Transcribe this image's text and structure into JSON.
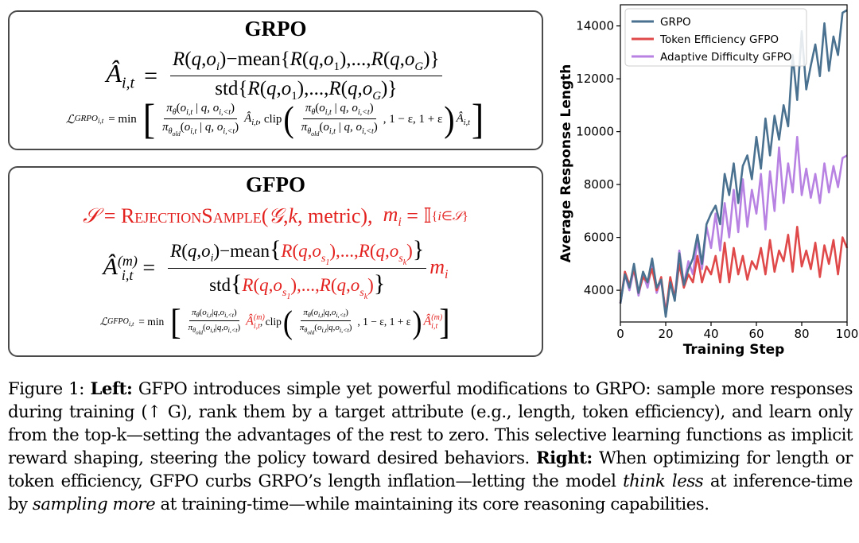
{
  "grpo_box": {
    "title": "GRPO",
    "adv_lhs": "Â",
    "adv_sub": "i,t",
    "adv_num": "R(q,o",
    "adv_num_full": "R(q,oᵢ)−mean{R(q,o₁),...,R(q,o_G)}",
    "adv_den_full": "std{R(q,o₁),...,R(q,o_G)}",
    "loss_lhs": "ℒ_GRPO_i,t",
    "loss_rhs": "min[ πθ(oᵢ,ₜ | q, oᵢ,<ₜ) / πθold(oᵢ,ₜ | q, oᵢ,<ₜ) Âᵢ,ₜ, clip( πθ(oᵢ,ₜ | q, oᵢ,<ₜ) / πθold(oᵢ,ₜ | q, oᵢ,<ₜ), 1 − ε, 1 + ε ) Âᵢ,ₜ ]"
  },
  "gfpo_box": {
    "title": "GFPO",
    "selection_full": "𝒮 = RejectionSample(𝒢, k, metric), mᵢ = 𝕀{i∈𝒮}",
    "adv_num_full": "R(q,oᵢ)−mean{R(q,o_s₁),...,R(q,o_sₖ)}",
    "adv_den_full": "std{R(q,o_s₁),...,R(q,o_sₖ)}",
    "loss_lhs": "ℒ_GFPO_i,t"
  },
  "chart_data": {
    "type": "line",
    "xlabel": "Training Step",
    "ylabel": "Average Response Length",
    "xlim": [
      0,
      100
    ],
    "ylim": [
      2800,
      14800
    ],
    "xticks": [
      0,
      20,
      40,
      60,
      80,
      100
    ],
    "yticks": [
      4000,
      6000,
      8000,
      10000,
      12000,
      14000
    ],
    "legend_position": "top-left",
    "series": [
      {
        "name": "GRPO",
        "color": "#4a7290",
        "x": [
          0,
          2,
          4,
          6,
          8,
          10,
          12,
          14,
          16,
          18,
          20,
          22,
          24,
          26,
          28,
          30,
          32,
          34,
          36,
          38,
          40,
          42,
          44,
          46,
          48,
          50,
          52,
          54,
          56,
          58,
          60,
          62,
          64,
          66,
          68,
          70,
          72,
          74,
          76,
          78,
          80,
          82,
          84,
          86,
          88,
          90,
          92,
          94,
          96,
          98,
          100
        ],
        "y": [
          3500,
          4600,
          4100,
          5000,
          3900,
          4700,
          4300,
          5200,
          4100,
          4400,
          3000,
          4300,
          3600,
          5400,
          4200,
          4800,
          5200,
          6100,
          5000,
          6500,
          6900,
          7200,
          6500,
          8400,
          7600,
          8800,
          7300,
          8700,
          9100,
          8200,
          9800,
          8600,
          10500,
          9100,
          10600,
          9700,
          11000,
          10200,
          12900,
          11200,
          13800,
          11600,
          12500,
          13300,
          12100,
          14100,
          12300,
          13600,
          12900,
          14500,
          14600
        ]
      },
      {
        "name": "Token Efficiency GFPO",
        "color": "#e0494a",
        "x": [
          0,
          2,
          4,
          6,
          8,
          10,
          12,
          14,
          16,
          18,
          20,
          22,
          24,
          26,
          28,
          30,
          32,
          34,
          36,
          38,
          40,
          42,
          44,
          46,
          48,
          50,
          52,
          54,
          56,
          58,
          60,
          62,
          64,
          66,
          68,
          70,
          72,
          74,
          76,
          78,
          80,
          82,
          84,
          86,
          88,
          90,
          92,
          94,
          96,
          98,
          100
        ],
        "y": [
          3500,
          4700,
          4200,
          4800,
          3900,
          4500,
          4300,
          4800,
          4000,
          4500,
          3100,
          4500,
          3700,
          5000,
          4100,
          4600,
          4300,
          5300,
          4300,
          4900,
          4600,
          5300,
          4300,
          5800,
          4300,
          5600,
          4600,
          5300,
          4400,
          5100,
          4800,
          5600,
          4600,
          5900,
          4700,
          5500,
          5100,
          6100,
          4700,
          6400,
          4900,
          5500,
          4800,
          5800,
          4500,
          5700,
          5000,
          5900,
          4600,
          6000,
          5600
        ]
      },
      {
        "name": "Adaptive Difficulty GFPO",
        "color": "#b882e3",
        "x": [
          0,
          2,
          4,
          6,
          8,
          10,
          12,
          14,
          16,
          18,
          20,
          22,
          24,
          26,
          28,
          30,
          32,
          34,
          36,
          38,
          40,
          42,
          44,
          46,
          48,
          50,
          52,
          54,
          56,
          58,
          60,
          62,
          64,
          66,
          68,
          70,
          72,
          74,
          76,
          78,
          80,
          82,
          84,
          86,
          88,
          90,
          92,
          94,
          96,
          98,
          100
        ],
        "y": [
          3500,
          4600,
          4000,
          4800,
          3800,
          4600,
          4100,
          5000,
          3900,
          4400,
          3200,
          4300,
          3700,
          5500,
          4200,
          5100,
          4600,
          5900,
          4800,
          6400,
          5600,
          6900,
          5500,
          7300,
          6000,
          7800,
          6200,
          8200,
          6400,
          7800,
          6900,
          8400,
          6300,
          8500,
          7000,
          9400,
          7300,
          8800,
          7700,
          9800,
          7600,
          8600,
          7500,
          8400,
          7300,
          8800,
          7700,
          8700,
          7900,
          9000,
          9100
        ]
      }
    ]
  },
  "caption": {
    "p1": "Figure 1: ",
    "left_label": "Left:",
    "p2": " GFPO introduces simple yet powerful modifications to GRPO: sample more responses during training (↑ G), rank them by a target attribute (e.g., length, token efficiency), and learn only from the top-k—setting the advantages of the rest to zero.  This selective learning functions as implicit reward shaping, steering the policy toward desired behaviors.  ",
    "right_label": "Right:",
    "p3": " When optimizing for length or token efficiency, GFPO curbs GRPO’s length inflation—letting the model ",
    "think_less": "think less",
    "p4": " at inference-time by ",
    "sampling_more": "sampling more",
    "p5": " at training-time—while maintaining its core reasoning capabilities."
  }
}
